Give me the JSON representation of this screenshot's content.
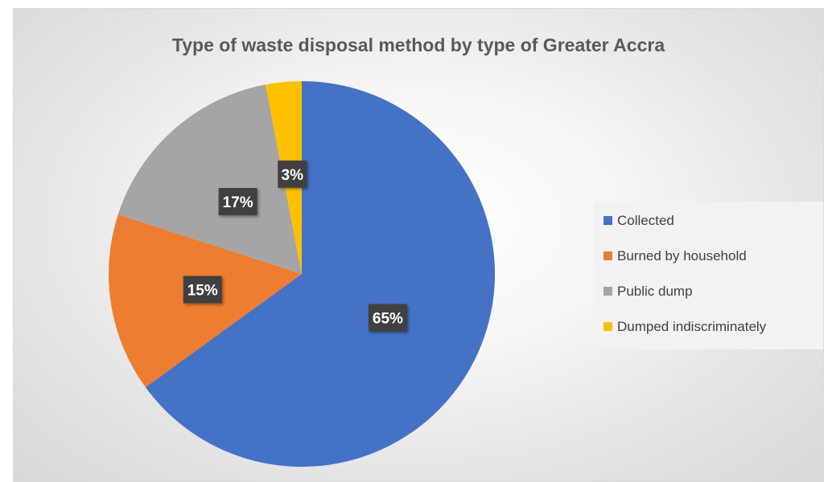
{
  "chart_data": {
    "type": "pie",
    "title": "Type of waste disposal method by type of Greater Accra",
    "categories": [
      "Collected",
      "Burned by household",
      "Public dump",
      "Dumped indiscriminately"
    ],
    "values": [
      65,
      15,
      17,
      3
    ],
    "data_labels": [
      "65%",
      "15%",
      "17%",
      "3%"
    ],
    "colors": [
      "#4472c4",
      "#ed7d31",
      "#a5a5a5",
      "#ffc000"
    ],
    "legend_position": "right",
    "start_angle": "top",
    "direction": "clockwise"
  }
}
